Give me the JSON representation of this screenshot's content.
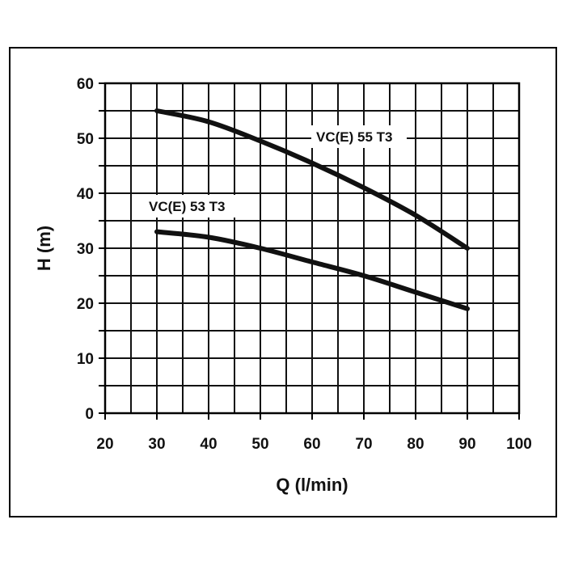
{
  "chart_data": {
    "type": "line",
    "xlabel": "Q (l/min)",
    "ylabel": "H (m)",
    "xlim": [
      20,
      100
    ],
    "ylim": [
      0,
      60
    ],
    "x_ticks": [
      "20",
      "30",
      "40",
      "50",
      "60",
      "70",
      "80",
      "90",
      "100"
    ],
    "y_ticks": [
      "0",
      "10",
      "20",
      "30",
      "40",
      "50",
      "60"
    ],
    "grid": true,
    "series": [
      {
        "name": "VC(E) 55 T3",
        "x": [
          30,
          40,
          50,
          60,
          70,
          80,
          90
        ],
        "y": [
          55,
          53,
          49.5,
          45.5,
          41,
          36,
          30
        ]
      },
      {
        "name": "VC(E) 53 T3",
        "x": [
          30,
          40,
          50,
          60,
          70,
          80,
          90
        ],
        "y": [
          33,
          32,
          30,
          27.5,
          25,
          22,
          19
        ]
      }
    ],
    "colors": {
      "line": "#111111",
      "grid": "#111111"
    }
  }
}
